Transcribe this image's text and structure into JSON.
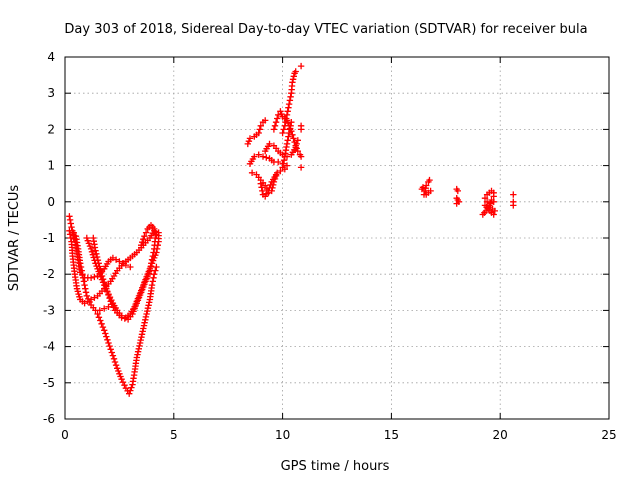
{
  "chart_data": {
    "type": "scatter",
    "title": "Day 303 of 2018, Sidereal Day-to-day VTEC variation (SDTVAR) for receiver bula",
    "xlabel": "GPS time / hours",
    "ylabel": "SDTVAR / TECUs",
    "xlim": [
      0,
      25
    ],
    "ylim": [
      -6,
      4
    ],
    "xticks": [
      0,
      5,
      10,
      15,
      20,
      25
    ],
    "yticks": [
      -6,
      -5,
      -4,
      -3,
      -2,
      -1,
      0,
      1,
      2,
      3,
      4
    ],
    "xtick_labels": [
      "0",
      "5",
      "10",
      "15",
      "20",
      "25"
    ],
    "ytick_labels": [
      "-6",
      "-5",
      "-4",
      "-3",
      "-2",
      "-1",
      "0",
      "1",
      "2",
      "3",
      "4"
    ],
    "grid": true,
    "marker": "plus",
    "marker_color": "#ff0000",
    "tracks": [
      [
        [
          0.2,
          -0.8
        ],
        [
          0.3,
          -1.1
        ],
        [
          0.35,
          -1.5
        ],
        [
          0.45,
          -2.0
        ],
        [
          0.55,
          -2.4
        ],
        [
          0.7,
          -2.7
        ],
        [
          0.9,
          -2.8
        ],
        [
          1.2,
          -2.7
        ],
        [
          1.5,
          -2.6
        ],
        [
          1.8,
          -2.4
        ],
        [
          2.1,
          -2.2
        ],
        [
          2.4,
          -1.9
        ],
        [
          2.7,
          -1.7
        ],
        [
          3.0,
          -1.55
        ],
        [
          3.3,
          -1.4
        ],
        [
          3.6,
          -1.2
        ],
        [
          3.9,
          -1.0
        ],
        [
          4.1,
          -0.8
        ]
      ],
      [
        [
          0.2,
          -0.4
        ],
        [
          0.3,
          -0.7
        ],
        [
          0.4,
          -1.0
        ]
      ],
      [
        [
          0.4,
          -0.85
        ],
        [
          0.5,
          -1.2
        ],
        [
          0.6,
          -1.6
        ],
        [
          0.7,
          -1.95
        ],
        [
          0.9,
          -2.1
        ],
        [
          1.2,
          -2.1
        ],
        [
          1.5,
          -2.05
        ],
        [
          1.8,
          -1.85
        ],
        [
          2.0,
          -1.65
        ],
        [
          2.2,
          -1.55
        ],
        [
          2.5,
          -1.65
        ],
        [
          2.8,
          -1.75
        ],
        [
          3.0,
          -1.8
        ]
      ],
      [
        [
          0.5,
          -0.95
        ],
        [
          0.6,
          -1.3
        ],
        [
          0.7,
          -1.7
        ],
        [
          0.8,
          -2.0
        ],
        [
          0.9,
          -2.3
        ],
        [
          1.0,
          -2.6
        ],
        [
          1.2,
          -2.85
        ],
        [
          1.4,
          -3.0
        ],
        [
          1.6,
          -3.0
        ],
        [
          1.8,
          -2.95
        ],
        [
          2.0,
          -2.9
        ]
      ],
      [
        [
          1.0,
          -1.0
        ],
        [
          1.2,
          -1.3
        ],
        [
          1.4,
          -1.7
        ],
        [
          1.6,
          -2.0
        ],
        [
          1.8,
          -2.3
        ],
        [
          2.0,
          -2.55
        ],
        [
          2.2,
          -2.8
        ],
        [
          2.4,
          -3.0
        ],
        [
          2.6,
          -3.15
        ],
        [
          2.8,
          -3.2
        ],
        [
          3.0,
          -3.1
        ],
        [
          3.2,
          -2.9
        ],
        [
          3.4,
          -2.6
        ],
        [
          3.6,
          -2.3
        ],
        [
          3.8,
          -2.0
        ],
        [
          4.0,
          -1.7
        ],
        [
          4.2,
          -1.4
        ],
        [
          4.3,
          -1.1
        ],
        [
          4.3,
          -0.85
        ]
      ],
      [
        [
          1.3,
          -1.0
        ],
        [
          1.4,
          -1.35
        ],
        [
          1.55,
          -1.7
        ],
        [
          1.7,
          -2.05
        ],
        [
          1.9,
          -2.4
        ],
        [
          2.1,
          -2.75
        ],
        [
          2.3,
          -3.0
        ],
        [
          2.6,
          -3.2
        ],
        [
          2.9,
          -3.25
        ],
        [
          3.1,
          -3.1
        ],
        [
          3.3,
          -2.8
        ],
        [
          3.5,
          -2.5
        ],
        [
          3.7,
          -2.2
        ],
        [
          3.9,
          -1.9
        ],
        [
          4.0,
          -1.6
        ],
        [
          4.1,
          -1.3
        ],
        [
          4.15,
          -1.0
        ]
      ],
      [
        [
          1.5,
          -3.1
        ],
        [
          1.8,
          -3.55
        ],
        [
          2.0,
          -3.9
        ],
        [
          2.2,
          -4.25
        ],
        [
          2.4,
          -4.6
        ],
        [
          2.6,
          -4.9
        ],
        [
          2.8,
          -5.15
        ],
        [
          2.95,
          -5.3
        ],
        [
          3.1,
          -5.05
        ],
        [
          3.2,
          -4.7
        ],
        [
          3.3,
          -4.3
        ],
        [
          3.45,
          -3.9
        ],
        [
          3.6,
          -3.5
        ],
        [
          3.75,
          -3.1
        ],
        [
          3.9,
          -2.7
        ],
        [
          4.0,
          -2.3
        ],
        [
          4.1,
          -2.0
        ],
        [
          4.2,
          -1.8
        ]
      ],
      [
        [
          3.5,
          -1.2
        ],
        [
          3.65,
          -0.95
        ],
        [
          3.8,
          -0.75
        ],
        [
          3.95,
          -0.65
        ],
        [
          4.1,
          -0.75
        ],
        [
          4.2,
          -0.9
        ]
      ],
      [
        [
          8.4,
          1.6
        ],
        [
          8.5,
          1.75
        ],
        [
          8.7,
          1.8
        ],
        [
          8.9,
          1.9
        ],
        [
          9.0,
          2.1
        ],
        [
          9.1,
          2.2
        ],
        [
          9.2,
          2.25
        ]
      ],
      [
        [
          8.5,
          1.05
        ],
        [
          8.7,
          1.25
        ],
        [
          8.9,
          1.3
        ],
        [
          9.1,
          1.25
        ],
        [
          9.4,
          1.2
        ],
        [
          9.6,
          1.1
        ],
        [
          9.8,
          1.1
        ],
        [
          10.0,
          1.05
        ],
        [
          10.2,
          1.0
        ]
      ],
      [
        [
          8.6,
          0.8
        ],
        [
          8.8,
          0.75
        ],
        [
          9.0,
          0.6
        ],
        [
          9.2,
          0.45
        ],
        [
          9.35,
          0.25
        ],
        [
          9.5,
          0.3
        ],
        [
          9.6,
          0.55
        ],
        [
          9.75,
          0.8
        ],
        [
          9.9,
          0.85
        ],
        [
          10.1,
          0.9
        ]
      ],
      [
        [
          9.0,
          0.5
        ],
        [
          9.1,
          0.2
        ],
        [
          9.2,
          0.15
        ],
        [
          9.35,
          0.3
        ],
        [
          9.5,
          0.55
        ],
        [
          9.7,
          0.75
        ]
      ],
      [
        [
          9.2,
          1.4
        ],
        [
          9.4,
          1.6
        ],
        [
          9.6,
          1.55
        ],
        [
          9.8,
          1.4
        ],
        [
          10.0,
          1.3
        ],
        [
          10.2,
          1.25
        ],
        [
          10.4,
          1.3
        ],
        [
          10.6,
          1.5
        ],
        [
          10.7,
          1.7
        ]
      ],
      [
        [
          9.6,
          2.0
        ],
        [
          9.7,
          2.2
        ],
        [
          9.8,
          2.4
        ],
        [
          9.9,
          2.5
        ],
        [
          10.0,
          2.35
        ],
        [
          10.2,
          2.25
        ],
        [
          10.4,
          1.95
        ],
        [
          10.5,
          1.75
        ],
        [
          10.6,
          1.55
        ],
        [
          10.7,
          1.4
        ]
      ],
      [
        [
          10.0,
          1.9
        ],
        [
          10.1,
          2.1
        ],
        [
          10.2,
          2.4
        ],
        [
          10.3,
          2.7
        ],
        [
          10.4,
          3.0
        ],
        [
          10.45,
          3.3
        ],
        [
          10.55,
          3.55
        ],
        [
          10.6,
          3.6
        ]
      ],
      [
        [
          10.0,
          0.95
        ],
        [
          10.1,
          1.25
        ],
        [
          10.2,
          1.6
        ],
        [
          10.3,
          1.9
        ],
        [
          10.4,
          2.2
        ]
      ],
      [
        [
          10.85,
          3.75
        ]
      ],
      [
        [
          10.85,
          2.0
        ],
        [
          10.85,
          2.1
        ]
      ],
      [
        [
          10.8,
          1.3
        ],
        [
          10.85,
          1.25
        ]
      ],
      [
        [
          10.85,
          0.95
        ]
      ],
      [
        [
          16.5,
          0.2
        ],
        [
          16.55,
          0.3
        ],
        [
          16.6,
          0.45
        ],
        [
          16.7,
          0.55
        ],
        [
          16.75,
          0.6
        ]
      ],
      [
        [
          16.6,
          0.2
        ],
        [
          16.7,
          0.25
        ],
        [
          16.8,
          0.3
        ]
      ],
      [
        [
          16.4,
          0.35
        ],
        [
          16.45,
          0.4
        ]
      ],
      [
        [
          18.0,
          0.35
        ],
        [
          18.05,
          0.3
        ]
      ],
      [
        [
          18.0,
          0.1
        ],
        [
          18.05,
          0.05
        ],
        [
          18.1,
          0.0
        ]
      ],
      [
        [
          18.0,
          -0.05
        ]
      ],
      [
        [
          19.3,
          0.1
        ],
        [
          19.4,
          0.2
        ],
        [
          19.5,
          0.25
        ],
        [
          19.6,
          0.3
        ],
        [
          19.7,
          0.25
        ]
      ],
      [
        [
          19.2,
          -0.35
        ],
        [
          19.35,
          -0.25
        ],
        [
          19.5,
          -0.1
        ],
        [
          19.6,
          0.05
        ],
        [
          19.7,
          0.15
        ]
      ],
      [
        [
          19.3,
          -0.1
        ],
        [
          19.45,
          -0.2
        ],
        [
          19.6,
          -0.3
        ],
        [
          19.7,
          -0.35
        ]
      ],
      [
        [
          19.4,
          0.0
        ],
        [
          19.55,
          -0.05
        ],
        [
          19.7,
          0.0
        ]
      ],
      [
        [
          19.5,
          -0.15
        ],
        [
          19.65,
          -0.2
        ],
        [
          19.75,
          -0.25
        ]
      ],
      [
        [
          20.6,
          0.2
        ]
      ],
      [
        [
          20.6,
          0.0
        ],
        [
          20.6,
          -0.1
        ]
      ]
    ]
  }
}
